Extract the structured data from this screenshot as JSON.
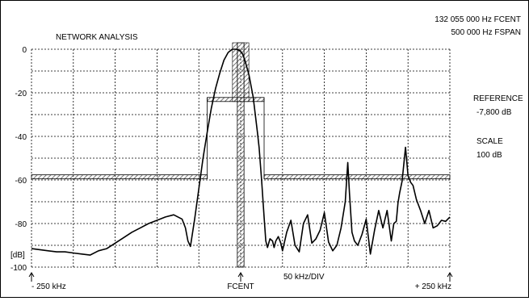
{
  "header": {
    "title": "NETWORK ANALYSIS",
    "fcent_readout": "132 055 000 Hz FCENT",
    "fspan_readout": "500 000 Hz FSPAN"
  },
  "side_panel": {
    "reference_label": "REFERENCE",
    "reference_value": "-7,800 dB",
    "scale_label": "SCALE",
    "scale_value": "100 dB"
  },
  "bottom": {
    "left_label": "- 250 kHz",
    "center_label": "FCENT",
    "div_label": "50 kHz/DIV",
    "right_label": "+ 250 kHz",
    "unit_label": "[dB]"
  },
  "colors": {
    "trace": "#000000",
    "grid": "#000000",
    "mask": "#555555"
  },
  "chart_data": {
    "type": "line",
    "x_unit": "kHz offset from FCENT",
    "y_unit": "dB",
    "xlim": [
      -250,
      250
    ],
    "ylim": [
      -100,
      0
    ],
    "y_ticks": [
      {
        "value": 0,
        "label": "0"
      },
      {
        "value": -20,
        "label": "-20"
      },
      {
        "value": -40,
        "label": "-40"
      },
      {
        "value": -60,
        "label": "-60"
      },
      {
        "value": -80,
        "label": "-80"
      },
      {
        "value": -100,
        "label": "-100"
      }
    ],
    "grid": true,
    "mask": {
      "skirt_level": -59.5,
      "passband_level": -24.0,
      "passband_x": [
        -40,
        28
      ],
      "center_x": [
        -4,
        4
      ]
    },
    "series": [
      {
        "x": [
          -250,
          -240,
          -230,
          -220,
          -210,
          -200,
          -190,
          -180,
          -170,
          -160,
          -150,
          -140,
          -130,
          -120,
          -110,
          -100,
          -90,
          -80,
          -70,
          -66,
          -63,
          -60,
          -55,
          -50,
          -45,
          -40,
          -35,
          -30,
          -25,
          -20,
          -15,
          -10,
          -5,
          -2,
          0,
          2,
          5,
          10,
          15,
          20,
          22,
          25,
          28,
          30,
          32,
          35,
          38,
          40,
          42,
          45,
          48,
          50,
          55,
          60,
          65,
          70,
          75,
          80,
          85,
          90,
          95,
          100,
          105,
          110,
          115,
          120,
          125,
          128,
          130,
          133,
          136,
          140,
          145,
          150,
          155,
          160,
          165,
          170,
          175,
          180,
          183,
          186,
          188,
          190,
          193,
          197,
          200,
          203,
          206,
          210,
          215,
          220,
          225,
          230,
          235,
          240,
          245,
          250
        ],
        "y": [
          -91.5,
          -92.0,
          -92.5,
          -93.0,
          -93.0,
          -93.5,
          -94.0,
          -94.5,
          -92.5,
          -91.5,
          -89.0,
          -86.5,
          -84.0,
          -82.0,
          -80.0,
          -78.5,
          -77.0,
          -76.0,
          -78.0,
          -82.0,
          -88.0,
          -90.5,
          -78.0,
          -64.0,
          -50.0,
          -38.0,
          -27.0,
          -18.0,
          -11.0,
          -5.0,
          -1.5,
          0.0,
          0.0,
          -0.5,
          -1.0,
          -2.0,
          -5.0,
          -12.0,
          -22.0,
          -38.0,
          -45.0,
          -60.0,
          -77.0,
          -88.0,
          -91.0,
          -87.0,
          -88.0,
          -91.0,
          -88.0,
          -86.0,
          -89.0,
          -92.5,
          -84.0,
          -78.5,
          -90.0,
          -93.0,
          -80.0,
          -76.0,
          -89.0,
          -87.0,
          -83.0,
          -75.0,
          -88.5,
          -92.5,
          -90.0,
          -82.0,
          -70.0,
          -52.0,
          -66.0,
          -84.0,
          -88.0,
          -90.0,
          -85.0,
          -78.0,
          -94.0,
          -83.0,
          -74.0,
          -82.0,
          -74.0,
          -88.0,
          -80.0,
          -79.0,
          -70.5,
          -66.0,
          -60.5,
          -45.0,
          -58.0,
          -61.0,
          -62.5,
          -69.0,
          -74.0,
          -80.0,
          -74.0,
          -82.0,
          -81.0,
          -78.5,
          -79.0,
          -77.0
        ]
      }
    ]
  }
}
